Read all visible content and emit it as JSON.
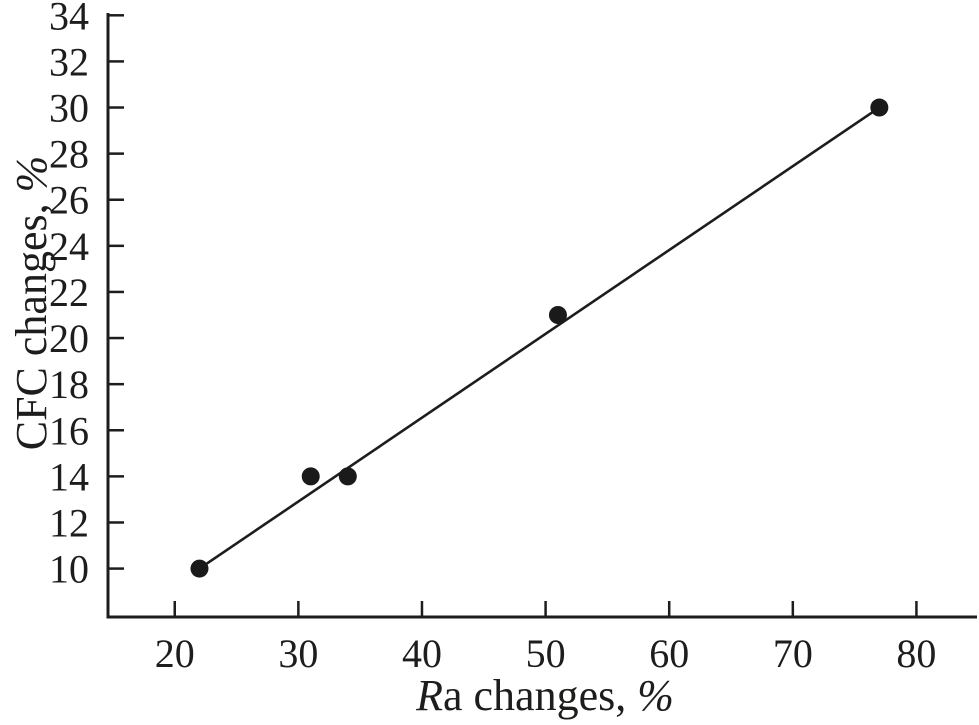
{
  "chart_data": {
    "type": "scatter",
    "title": "",
    "xlabel": {
      "prefix_italic": "R",
      "text": "a changes, ",
      "suffix_italic": "%"
    },
    "ylabel": {
      "text": "CFC changes, ",
      "suffix_italic": "%"
    },
    "x_ticks": [
      20,
      30,
      40,
      50,
      60,
      70,
      80
    ],
    "y_ticks": [
      10,
      12,
      14,
      16,
      18,
      20,
      22,
      24,
      26,
      28,
      30,
      32,
      34
    ],
    "xlim": [
      14.6,
      84.9
    ],
    "ylim": [
      7.9,
      34.1
    ],
    "points": [
      {
        "x": 22,
        "y": 10
      },
      {
        "x": 31,
        "y": 14
      },
      {
        "x": 34,
        "y": 14
      },
      {
        "x": 51,
        "y": 21
      },
      {
        "x": 77,
        "y": 30
      }
    ],
    "trend_line": {
      "x1": 22,
      "y1": 10,
      "x2": 77,
      "y2": 30
    },
    "grid": false,
    "legend": null,
    "colors": {
      "marker": "#1a1a1a",
      "line": "#1d1d1b",
      "axis": "#1d1d1b",
      "text": "#1d1d1b",
      "background": "#ffffff"
    }
  }
}
